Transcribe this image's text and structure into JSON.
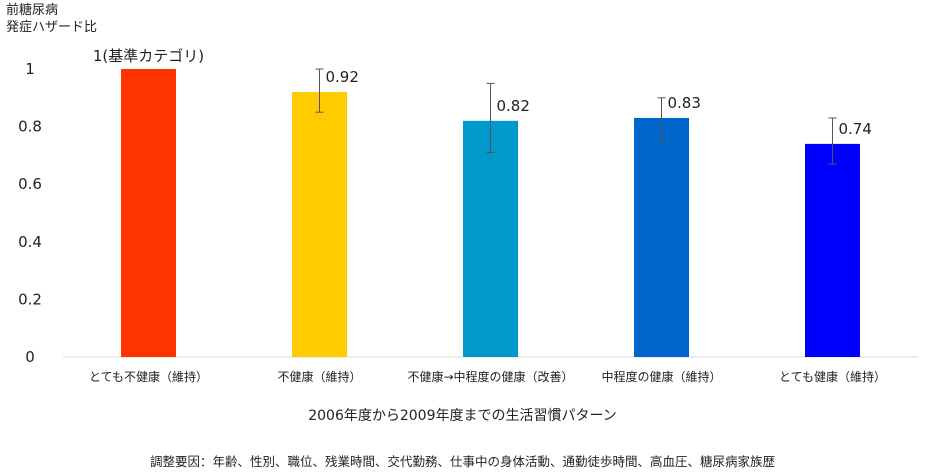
{
  "chart_data": {
    "type": "bar",
    "ylabel_lines": [
      "前糖尿病",
      "発症ハザード比"
    ],
    "xlabel": "2006年度から2009年度までの生活習慣パターン",
    "footnote": "調整要因：年齢、性別、職位、残業時間、交代勤務、仕事中の身体活動、通勤徒歩時間、高血圧、糖尿病家族歴",
    "categories": [
      "とても不健康（維持）",
      "不健康（維持）",
      "不健康→中程度の健康（改善）",
      "中程度の健康（維持）",
      "とても健康（維持）"
    ],
    "values": [
      1,
      0.92,
      0.82,
      0.83,
      0.74
    ],
    "value_labels": [
      "1(基準カテゴリ)",
      "0.92",
      "0.82",
      "0.83",
      "0.74"
    ],
    "error_low": [
      null,
      0.85,
      0.71,
      0.75,
      0.67
    ],
    "error_high": [
      null,
      1.0,
      0.95,
      0.9,
      0.83
    ],
    "colors": [
      "#ff3300",
      "#ffcc00",
      "#0099cc",
      "#0066cc",
      "#0000ff"
    ],
    "ylim": [
      0,
      1
    ],
    "yticks": [
      "0",
      "0.2",
      "0.4",
      "0.6",
      "0.8",
      "1"
    ],
    "ytick_values": [
      0,
      0.2,
      0.4,
      0.6,
      0.8,
      1
    ],
    "grid": false,
    "legend": "none"
  }
}
